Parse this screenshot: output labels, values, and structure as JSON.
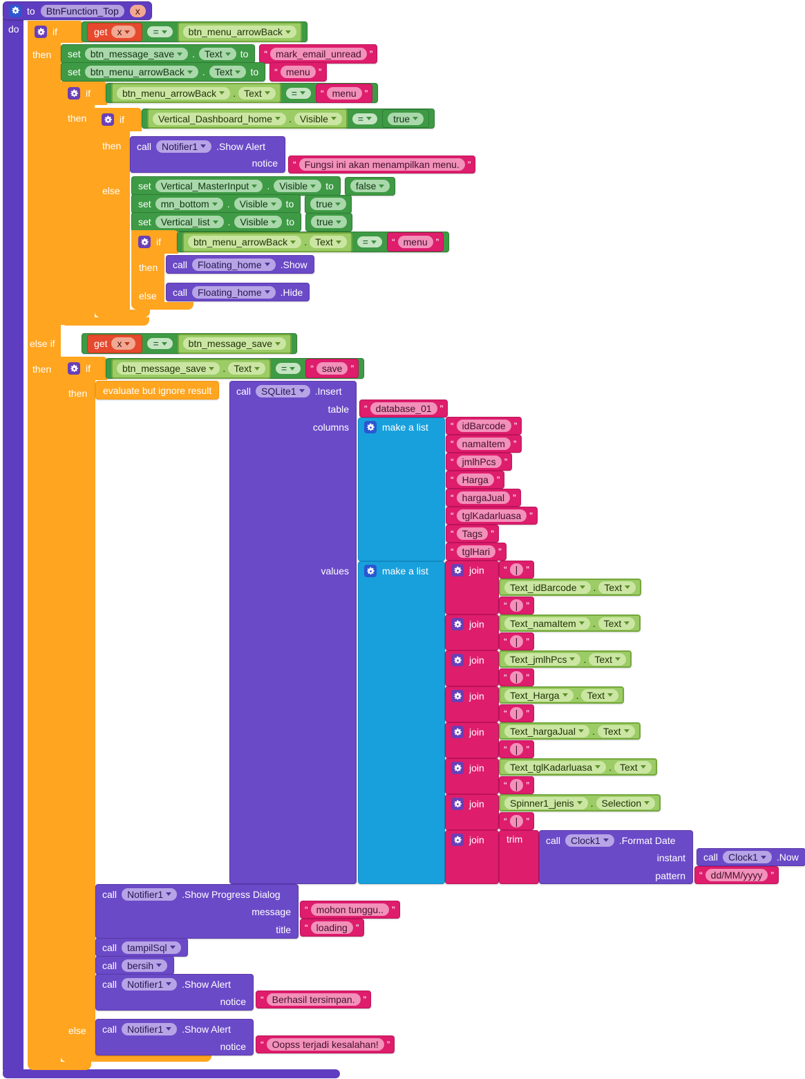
{
  "k": {
    "to": "to",
    "do": "do",
    "if": "if",
    "then": "then",
    "else": "else",
    "elseif": "else if",
    "set": "set",
    "assignto": "to",
    "call": "call",
    "get": "get",
    "eq": "=",
    "dot": ".",
    "join": "join",
    "trim": "trim",
    "makelist": "make a list",
    "evaluate": "evaluate but ignore result",
    "true": "true",
    "false": "false",
    "notice": "notice",
    "table": "table",
    "columns": "columns",
    "values": "values",
    "message": "message",
    "title": "title",
    "instant": "instant",
    "pattern": "pattern"
  },
  "proc": {
    "name": "BtnFunction_Top",
    "param": "x"
  },
  "b1": {
    "cond": {
      "var": "x",
      "right": "btn_menu_arrowBack"
    },
    "set1": {
      "comp": "btn_message_save",
      "prop": "Text",
      "val": "mark_email_unread"
    },
    "set2": {
      "comp": "btn_menu_arrowBack",
      "prop": "Text",
      "val": "menu"
    },
    "if2cond": {
      "comp": "btn_menu_arrowBack",
      "prop": "Text",
      "val": "menu"
    },
    "if3cond": {
      "comp": "Vertical_Dashboard_home",
      "prop": "Visible",
      "val": "true"
    },
    "alert": {
      "comp": "Notifier1",
      "method": ".Show Alert",
      "notice": "Fungsi ini akan menampilkan menu."
    },
    "set3": {
      "comp": "Vertical_MasterInput",
      "prop": "Visible",
      "val": "false"
    },
    "set4": {
      "comp": "mn_bottom",
      "prop": "Visible",
      "val": "true"
    },
    "set5": {
      "comp": "Vertical_list",
      "prop": "Visible",
      "val": "true"
    },
    "if4cond": {
      "comp": "btn_menu_arrowBack",
      "prop": "Text",
      "val": "menu"
    },
    "show": {
      "comp": "Floating_home",
      "method": ".Show"
    },
    "hide": {
      "comp": "Floating_home",
      "method": ".Hide"
    }
  },
  "b2": {
    "cond": {
      "var": "x",
      "right": "btn_message_save"
    },
    "if5cond": {
      "comp": "btn_message_save",
      "prop": "Text",
      "val": "save"
    },
    "sqlite": {
      "comp": "SQLite1",
      "method": ".Insert",
      "table": "database_01",
      "columns": [
        "idBarcode",
        "namaItem",
        "jmlhPcs",
        "Harga",
        "hargaJual",
        "tglKadarluasa",
        "Tags",
        "tglHari"
      ],
      "sep": "|",
      "joins": [
        {
          "comp": "Text_idBarcode",
          "prop": "Text"
        },
        {
          "comp": "Text_namaItem",
          "prop": "Text"
        },
        {
          "comp": "Text_jmlhPcs",
          "prop": "Text"
        },
        {
          "comp": "Text_Harga",
          "prop": "Text"
        },
        {
          "comp": "Text_hargaJual",
          "prop": "Text"
        },
        {
          "comp": "Text_tglKadarluasa",
          "prop": "Text"
        },
        {
          "comp": "Spinner1_jenis",
          "prop": "Selection"
        }
      ],
      "fmt": {
        "comp": "Clock1",
        "method": ".Format Date"
      },
      "now": {
        "comp": "Clock1",
        "method": ".Now"
      },
      "pattern": "dd/MM/yyyy"
    },
    "progress": {
      "comp": "Notifier1",
      "method": ".Show Progress Dialog",
      "message": "mohon tunggu..",
      "title": "loading"
    },
    "tampil": {
      "comp": "tampilSql"
    },
    "bersih": {
      "comp": "bersih"
    },
    "ok": {
      "comp": "Notifier1",
      "method": ".Show Alert",
      "notice": "Berhasil tersimpan."
    },
    "err": {
      "comp": "Notifier1",
      "method": ".Show Alert",
      "notice": "Oopss terjadi kesalahan!"
    }
  },
  "colors": {
    "orange": "#FFA51F",
    "green": "#3E9A44",
    "light_green": "#9CCC65",
    "pink": "#DE1D6C",
    "purple": "#6B4AC8",
    "cyan": "#18A0DC",
    "red": "#E6492D",
    "proc_purple": "#5F3DC0"
  }
}
